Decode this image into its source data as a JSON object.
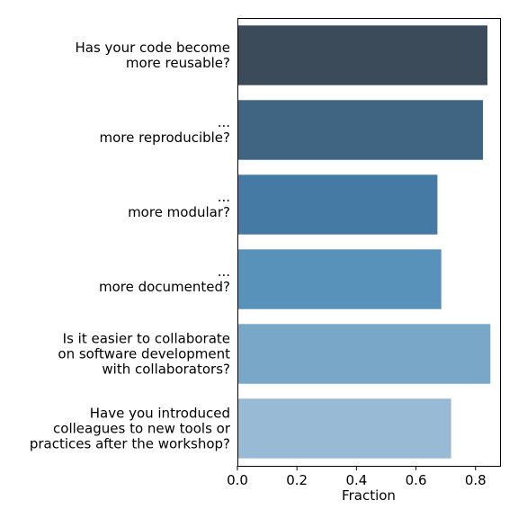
{
  "chart_data": {
    "type": "bar",
    "orientation": "horizontal",
    "categories": [
      [
        "Has your code become",
        "more reusable?"
      ],
      [
        "...",
        "more reproducible?"
      ],
      [
        "...",
        "more modular?"
      ],
      [
        "...",
        "more documented?"
      ],
      [
        "Is it easier to collaborate",
        "on software development",
        "with collaborators?"
      ],
      [
        "Have you introduced",
        "colleagues to new tools or",
        "practices after the workshop?"
      ]
    ],
    "values": [
      0.84,
      0.825,
      0.672,
      0.685,
      0.85,
      0.718
    ],
    "colors": [
      "#3b4b5a",
      "#3f6582",
      "#447aa3",
      "#5892bb",
      "#78a7c7",
      "#98bad4"
    ],
    "xlabel": "Fraction",
    "ylabel": "",
    "title": "",
    "xlim": [
      0,
      0.8823
    ],
    "xticks": [
      0.0,
      0.2,
      0.4,
      0.6,
      0.8
    ],
    "xtick_labels": [
      "0.0",
      "0.2",
      "0.4",
      "0.6",
      "0.8"
    ],
    "grid": false,
    "legend": "none"
  }
}
